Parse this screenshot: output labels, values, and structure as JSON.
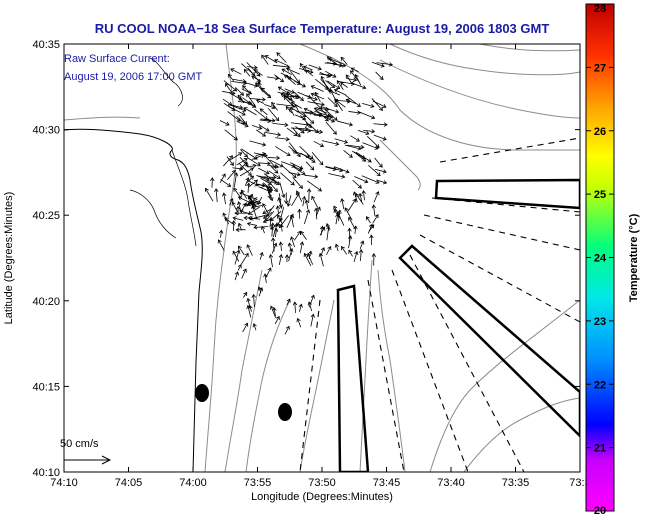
{
  "chart_data": {
    "type": "map-vector",
    "title": "RU COOL  NOAA−18  Sea Surface Temperature:  August 19, 2006 1803 GMT",
    "annotation": {
      "line1": "Raw Surface Current:",
      "line2": "August 19, 2006 17:00 GMT"
    },
    "xlabel": "Longitude (Degrees:Minutes)",
    "ylabel": "Latitude (Degrees:Minutes)",
    "x_ticks": [
      "74:10",
      "74:05",
      "74:00",
      "73:55",
      "73:50",
      "73:45",
      "73:40",
      "73:35",
      "73:3"
    ],
    "y_ticks": [
      "40:10",
      "40:15",
      "40:20",
      "40:25",
      "40:30",
      "40:35"
    ],
    "colorbar": {
      "label": "Temperature (°C)",
      "min": 20,
      "max": 28,
      "ticks": [
        "20",
        "21",
        "22",
        "23",
        "24",
        "25",
        "26",
        "27",
        "28"
      ]
    },
    "scale_arrow_label": "50 cm/s",
    "colors": {
      "title": "#1a1aa8",
      "annotation": "#1a1aa8",
      "frame": "#000000",
      "arrows": "#000000",
      "contours": "#8c8c8c"
    }
  }
}
